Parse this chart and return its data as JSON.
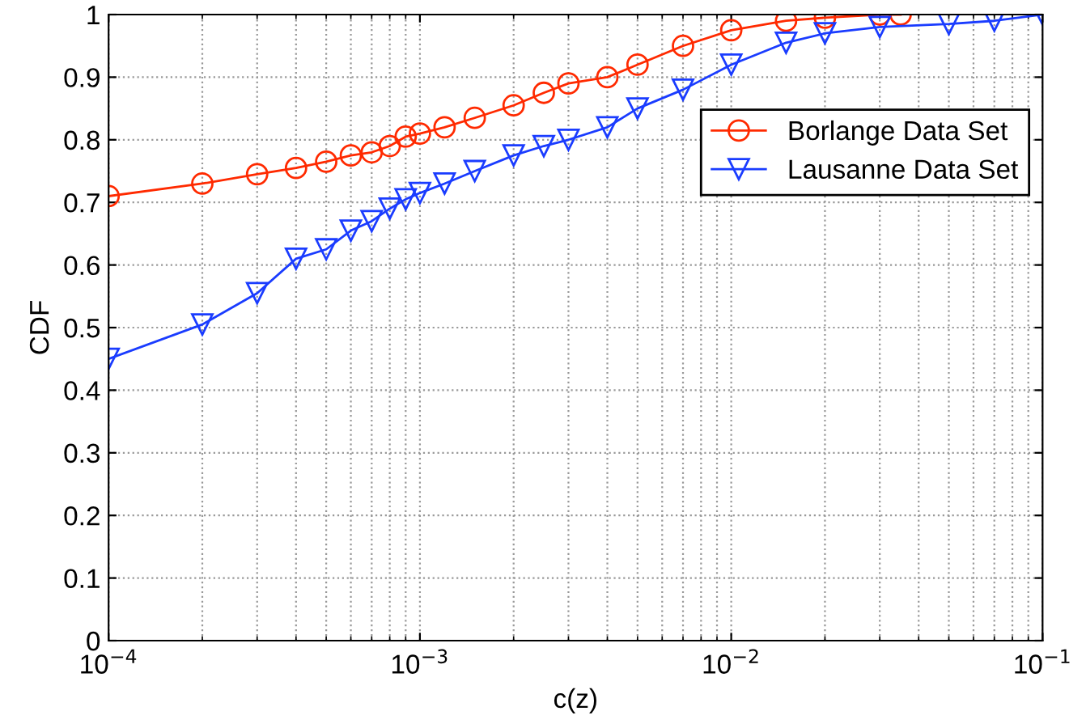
{
  "chart_data": {
    "type": "line",
    "xlabel": "c(z)",
    "ylabel": "CDF",
    "log": "x",
    "grid": true,
    "legend": "right",
    "line_style": "solid",
    "xlim": [
      0.0001,
      0.1
    ],
    "xticks": [
      {
        "value": 0.0001,
        "label": "10$^{−4}$"
      },
      {
        "value": 0.001,
        "label": "10$^{−3}$"
      },
      {
        "value": 0.01,
        "label": "10$^{−2}$"
      },
      {
        "value": 0.1,
        "label": "10$^{−1}$"
      }
    ],
    "ylim": [
      0,
      1
    ],
    "yticks": [
      0,
      0.1,
      0.2,
      0.3,
      0.4,
      0.5,
      0.6,
      0.7,
      0.8,
      0.9,
      1
    ],
    "series": [
      {
        "name": "Borlange Data Set",
        "color": "#ff2a00",
        "marker": "circle",
        "x": [
          0.0001,
          0.0002,
          0.0003,
          0.0004,
          0.0005,
          0.0006,
          0.0007,
          0.0008,
          0.0009,
          0.001,
          0.0012,
          0.0015,
          0.002,
          0.0025,
          0.003,
          0.004,
          0.005,
          0.007,
          0.01,
          0.015,
          0.02,
          0.03,
          0.035
        ],
        "values": [
          0.71,
          0.73,
          0.745,
          0.755,
          0.765,
          0.775,
          0.78,
          0.79,
          0.805,
          0.81,
          0.82,
          0.835,
          0.855,
          0.875,
          0.89,
          0.9,
          0.92,
          0.95,
          0.975,
          0.99,
          0.995,
          1.0,
          1.0
        ]
      },
      {
        "name": "Lausanne Data Set",
        "color": "#1a3cff",
        "marker": "triangle",
        "x": [
          0.0001,
          0.0002,
          0.0003,
          0.0004,
          0.0005,
          0.0006,
          0.0007,
          0.0008,
          0.0009,
          0.001,
          0.0012,
          0.0015,
          0.002,
          0.0025,
          0.003,
          0.004,
          0.005,
          0.007,
          0.01,
          0.015,
          0.02,
          0.03,
          0.05,
          0.07,
          0.1
        ],
        "values": [
          0.45,
          0.505,
          0.555,
          0.61,
          0.625,
          0.655,
          0.67,
          0.69,
          0.705,
          0.715,
          0.73,
          0.75,
          0.775,
          0.79,
          0.8,
          0.82,
          0.85,
          0.88,
          0.92,
          0.955,
          0.97,
          0.98,
          0.985,
          0.99,
          1.0
        ]
      }
    ]
  }
}
